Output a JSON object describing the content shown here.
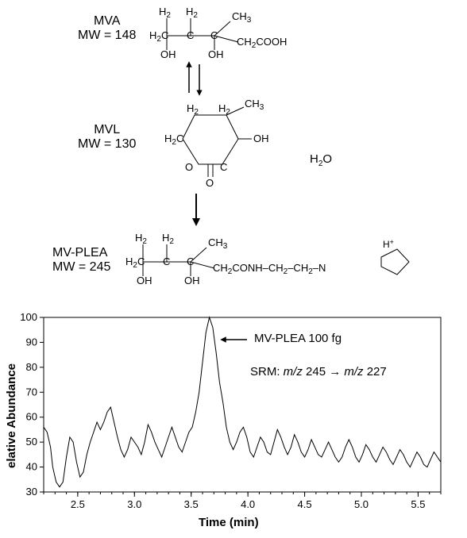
{
  "diagram": {
    "compounds": [
      {
        "name": "MVA",
        "mw_label": "MW = 148"
      },
      {
        "name": "MVL",
        "mw_label": "MW = 130"
      },
      {
        "name": "MV-PLEA",
        "mw_label": "MW = 245"
      }
    ],
    "formula_mva_open": "H₂C–C–C–CH₂COOH with OH groups",
    "formula_mvl": "cyclic lactone with CH₃, OH, H₂O byproduct",
    "formula_mvplea": "H₂C–C–C–CH₂CONH–CH₂–CH₂–N⁺(pyrrolidine)",
    "water_label": "H",
    "water_sub": "2",
    "water_O": "O"
  },
  "chart": {
    "type": "line",
    "ylabel": "elative Abundance",
    "xlabel": "Time (min)",
    "ylim": [
      30,
      100
    ],
    "yticks": [
      30,
      40,
      50,
      60,
      70,
      80,
      90,
      100
    ],
    "xlim": [
      2.2,
      5.7
    ],
    "xticks": [
      "2.5",
      "3.0",
      "3.5",
      "4.0",
      "4.5",
      "5.0",
      "5.5"
    ],
    "label_fontsize": 15,
    "tick_fontsize": 13,
    "line_color": "#000000",
    "line_width": 1,
    "background_color": "#ffffff",
    "annotation_peak": "MV-PLEA  100 fg",
    "annotation_srm_prefix": "SRM: ",
    "annotation_srm_mz1": "m/z",
    "annotation_srm_val1": " 245 → ",
    "annotation_srm_mz2": "m/z",
    "annotation_srm_val2": " 227",
    "trace": [
      [
        2.2,
        56
      ],
      [
        2.23,
        54
      ],
      [
        2.26,
        48
      ],
      [
        2.28,
        40
      ],
      [
        2.31,
        34
      ],
      [
        2.34,
        32
      ],
      [
        2.37,
        34
      ],
      [
        2.4,
        44
      ],
      [
        2.43,
        52
      ],
      [
        2.46,
        50
      ],
      [
        2.49,
        42
      ],
      [
        2.52,
        36
      ],
      [
        2.55,
        38
      ],
      [
        2.58,
        45
      ],
      [
        2.61,
        50
      ],
      [
        2.64,
        54
      ],
      [
        2.67,
        58
      ],
      [
        2.7,
        55
      ],
      [
        2.73,
        58
      ],
      [
        2.76,
        62
      ],
      [
        2.79,
        64
      ],
      [
        2.82,
        58
      ],
      [
        2.85,
        52
      ],
      [
        2.88,
        47
      ],
      [
        2.91,
        44
      ],
      [
        2.94,
        47
      ],
      [
        2.97,
        52
      ],
      [
        3.0,
        50
      ],
      [
        3.03,
        48
      ],
      [
        3.06,
        45
      ],
      [
        3.09,
        50
      ],
      [
        3.12,
        57
      ],
      [
        3.15,
        54
      ],
      [
        3.18,
        50
      ],
      [
        3.21,
        47
      ],
      [
        3.24,
        44
      ],
      [
        3.27,
        48
      ],
      [
        3.3,
        52
      ],
      [
        3.33,
        56
      ],
      [
        3.36,
        52
      ],
      [
        3.39,
        48
      ],
      [
        3.42,
        46
      ],
      [
        3.45,
        50
      ],
      [
        3.48,
        54
      ],
      [
        3.51,
        56
      ],
      [
        3.54,
        62
      ],
      [
        3.57,
        70
      ],
      [
        3.6,
        82
      ],
      [
        3.63,
        94
      ],
      [
        3.66,
        100
      ],
      [
        3.69,
        96
      ],
      [
        3.72,
        86
      ],
      [
        3.75,
        74
      ],
      [
        3.78,
        66
      ],
      [
        3.81,
        56
      ],
      [
        3.84,
        50
      ],
      [
        3.87,
        47
      ],
      [
        3.9,
        50
      ],
      [
        3.93,
        54
      ],
      [
        3.96,
        56
      ],
      [
        3.99,
        52
      ],
      [
        4.02,
        46
      ],
      [
        4.05,
        44
      ],
      [
        4.08,
        48
      ],
      [
        4.11,
        52
      ],
      [
        4.14,
        50
      ],
      [
        4.17,
        46
      ],
      [
        4.2,
        45
      ],
      [
        4.23,
        50
      ],
      [
        4.26,
        55
      ],
      [
        4.29,
        52
      ],
      [
        4.32,
        48
      ],
      [
        4.35,
        45
      ],
      [
        4.38,
        48
      ],
      [
        4.41,
        53
      ],
      [
        4.44,
        50
      ],
      [
        4.47,
        46
      ],
      [
        4.5,
        44
      ],
      [
        4.53,
        47
      ],
      [
        4.56,
        51
      ],
      [
        4.59,
        48
      ],
      [
        4.62,
        45
      ],
      [
        4.65,
        44
      ],
      [
        4.68,
        47
      ],
      [
        4.71,
        50
      ],
      [
        4.74,
        47
      ],
      [
        4.77,
        44
      ],
      [
        4.8,
        42
      ],
      [
        4.83,
        44
      ],
      [
        4.86,
        48
      ],
      [
        4.89,
        51
      ],
      [
        4.92,
        48
      ],
      [
        4.95,
        44
      ],
      [
        4.98,
        42
      ],
      [
        5.01,
        45
      ],
      [
        5.04,
        49
      ],
      [
        5.07,
        47
      ],
      [
        5.1,
        44
      ],
      [
        5.13,
        42
      ],
      [
        5.16,
        45
      ],
      [
        5.19,
        48
      ],
      [
        5.22,
        46
      ],
      [
        5.25,
        43
      ],
      [
        5.28,
        41
      ],
      [
        5.31,
        44
      ],
      [
        5.34,
        47
      ],
      [
        5.37,
        45
      ],
      [
        5.4,
        42
      ],
      [
        5.43,
        40
      ],
      [
        5.46,
        43
      ],
      [
        5.49,
        46
      ],
      [
        5.52,
        44
      ],
      [
        5.55,
        41
      ],
      [
        5.58,
        40
      ],
      [
        5.61,
        43
      ],
      [
        5.64,
        46
      ],
      [
        5.67,
        44
      ],
      [
        5.7,
        42
      ]
    ]
  },
  "colors": {
    "stroke": "#000000",
    "bg": "#ffffff"
  }
}
